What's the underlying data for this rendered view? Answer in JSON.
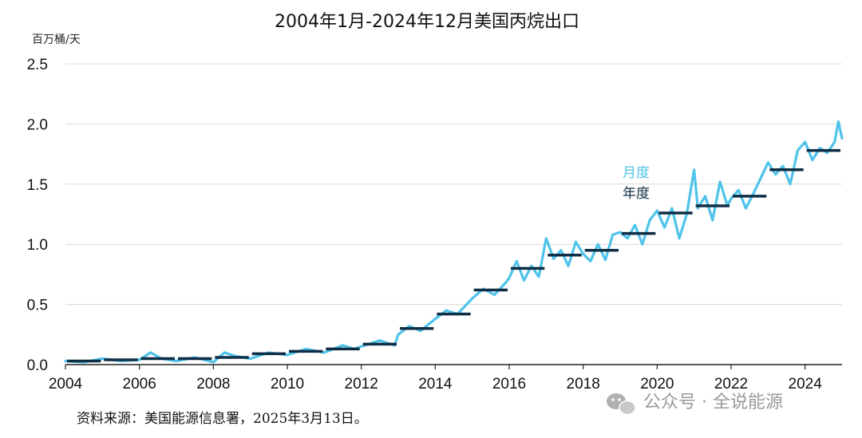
{
  "chart_data": {
    "type": "line",
    "title": "2004年1月-2024年12月美国丙烷出口",
    "unit_label": "百万桶/天",
    "xlabel": "",
    "ylabel": "",
    "ylim": [
      0,
      2.5
    ],
    "y_ticks": [
      "0.0",
      "0.5",
      "1.0",
      "1.5",
      "2.0",
      "2.5"
    ],
    "xlim": [
      2004,
      2025
    ],
    "x_ticks": [
      "2004",
      "2006",
      "2008",
      "2010",
      "2012",
      "2014",
      "2016",
      "2018",
      "2020",
      "2022",
      "2024"
    ],
    "grid": "horizontal",
    "legend_placement": "center-right",
    "series": [
      {
        "name": "月度",
        "color": "#4fc3ea",
        "style": "line",
        "x": [
          2004.0,
          2004.5,
          2005.0,
          2005.5,
          2006.0,
          2006.3,
          2006.6,
          2007.0,
          2007.5,
          2008.0,
          2008.3,
          2008.6,
          2009.0,
          2009.5,
          2010.0,
          2010.5,
          2011.0,
          2011.5,
          2011.8,
          2012.0,
          2012.5,
          2012.9,
          2013.0,
          2013.3,
          2013.6,
          2014.0,
          2014.3,
          2014.6,
          2015.0,
          2015.3,
          2015.6,
          2015.9,
          2016.0,
          2016.2,
          2016.4,
          2016.6,
          2016.8,
          2017.0,
          2017.2,
          2017.4,
          2017.6,
          2017.8,
          2018.0,
          2018.2,
          2018.4,
          2018.6,
          2018.8,
          2019.0,
          2019.2,
          2019.4,
          2019.6,
          2019.8,
          2020.0,
          2020.2,
          2020.4,
          2020.6,
          2020.8,
          2021.0,
          2021.1,
          2021.3,
          2021.5,
          2021.7,
          2021.9,
          2022.0,
          2022.2,
          2022.4,
          2022.6,
          2022.8,
          2023.0,
          2023.2,
          2023.4,
          2023.6,
          2023.8,
          2024.0,
          2024.2,
          2024.4,
          2024.6,
          2024.8,
          2024.9,
          2025.0
        ],
        "values": [
          0.03,
          0.02,
          0.05,
          0.03,
          0.04,
          0.1,
          0.05,
          0.03,
          0.06,
          0.02,
          0.1,
          0.07,
          0.05,
          0.1,
          0.08,
          0.13,
          0.1,
          0.16,
          0.13,
          0.15,
          0.2,
          0.16,
          0.25,
          0.32,
          0.28,
          0.38,
          0.45,
          0.42,
          0.55,
          0.63,
          0.58,
          0.68,
          0.72,
          0.86,
          0.7,
          0.82,
          0.73,
          1.05,
          0.88,
          0.95,
          0.82,
          1.02,
          0.92,
          0.86,
          1.0,
          0.87,
          1.08,
          1.1,
          1.05,
          1.16,
          1.0,
          1.2,
          1.28,
          1.14,
          1.3,
          1.05,
          1.25,
          1.62,
          1.3,
          1.4,
          1.2,
          1.52,
          1.32,
          1.38,
          1.45,
          1.3,
          1.42,
          1.55,
          1.68,
          1.58,
          1.65,
          1.5,
          1.78,
          1.85,
          1.7,
          1.8,
          1.76,
          1.85,
          2.02,
          1.88
        ]
      },
      {
        "name": "年度",
        "color": "#0f2e45",
        "style": "step",
        "years": [
          2004,
          2005,
          2006,
          2007,
          2008,
          2009,
          2010,
          2011,
          2012,
          2013,
          2014,
          2015,
          2016,
          2017,
          2018,
          2019,
          2020,
          2021,
          2022,
          2023,
          2024
        ],
        "values": [
          0.03,
          0.04,
          0.05,
          0.05,
          0.06,
          0.09,
          0.11,
          0.13,
          0.17,
          0.3,
          0.42,
          0.62,
          0.8,
          0.91,
          0.95,
          1.09,
          1.26,
          1.32,
          1.4,
          1.62,
          1.78
        ]
      }
    ]
  },
  "source_note": "资料来源：美国能源信息署，2025年3月13日。",
  "watermark": "公众号 · 全说能源",
  "colors": {
    "monthly": "#4fc3ea",
    "annual": "#0f2e45",
    "grid": "#d9d9d9",
    "axis": "#222222"
  }
}
